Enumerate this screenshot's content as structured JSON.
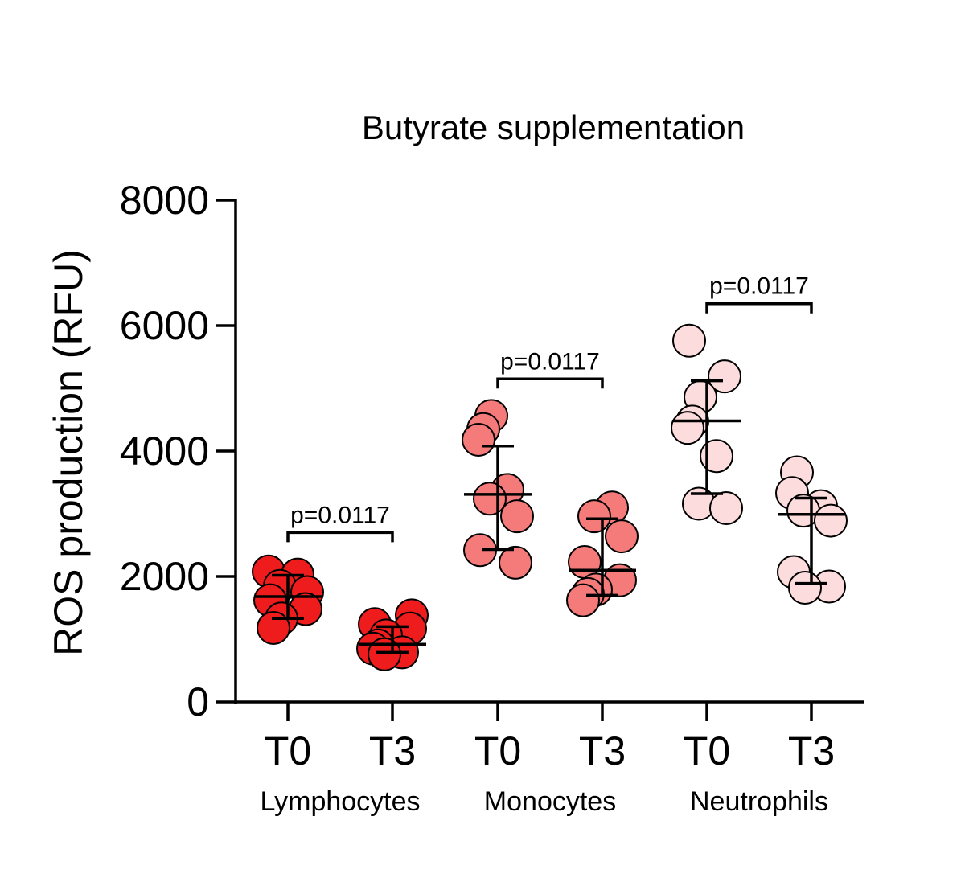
{
  "chart_data": {
    "type": "scatter",
    "title": "Butyrate supplementation",
    "ylabel": "ROS production (RFU)",
    "ylim": [
      0,
      8000
    ],
    "yticks": [
      0,
      2000,
      4000,
      6000,
      8000
    ],
    "grid": false,
    "categories": [
      "T0",
      "T3",
      "T0",
      "T3",
      "T0",
      "T3"
    ],
    "group_labels": [
      "Lymphocytes",
      "Monocytes",
      "Neutrophils"
    ],
    "series": [
      {
        "group": "Lymphocytes",
        "timepoint": "T0",
        "color": "#ee1c1c",
        "points": [
          2080,
          2030,
          1850,
          1750,
          1620,
          1480,
          1330,
          1180
        ],
        "mean": 1680,
        "sd_low": 1330,
        "sd_high": 2020
      },
      {
        "group": "Lymphocytes",
        "timepoint": "T3",
        "color": "#ee1c1c",
        "points": [
          1380,
          1240,
          1170,
          1060,
          900,
          850,
          790,
          760
        ],
        "mean": 920,
        "sd_low": 790,
        "sd_high": 1200
      },
      {
        "group": "Monocytes",
        "timepoint": "T0",
        "color": "#f57a7a",
        "points": [
          4560,
          4350,
          4180,
          3380,
          3240,
          2960,
          2420,
          2220
        ],
        "mean": 3310,
        "sd_low": 2430,
        "sd_high": 4080
      },
      {
        "group": "Monocytes",
        "timepoint": "T3",
        "color": "#f57a7a",
        "points": [
          3100,
          2960,
          2640,
          2230,
          1940,
          1790,
          1720,
          1620
        ],
        "mean": 2100,
        "sd_low": 1700,
        "sd_high": 2920
      },
      {
        "group": "Neutrophils",
        "timepoint": "T0",
        "color": "#fcdcdc",
        "points": [
          5760,
          5190,
          4860,
          4470,
          4370,
          3920,
          3160,
          3090
        ],
        "mean": 4480,
        "sd_low": 3320,
        "sd_high": 5120
      },
      {
        "group": "Neutrophils",
        "timepoint": "T3",
        "color": "#fcdcdc",
        "points": [
          3660,
          3330,
          3120,
          3050,
          2890,
          2070,
          1840,
          1820
        ],
        "mean": 2990,
        "sd_low": 1890,
        "sd_high": 3250
      }
    ],
    "annotations": [
      {
        "text": "p=0.0117",
        "from": 0,
        "to": 1,
        "y": 2700
      },
      {
        "text": "p=0.0117",
        "from": 2,
        "to": 3,
        "y": 5150
      },
      {
        "text": "p=0.0117",
        "from": 4,
        "to": 5,
        "y": 6350
      }
    ]
  }
}
